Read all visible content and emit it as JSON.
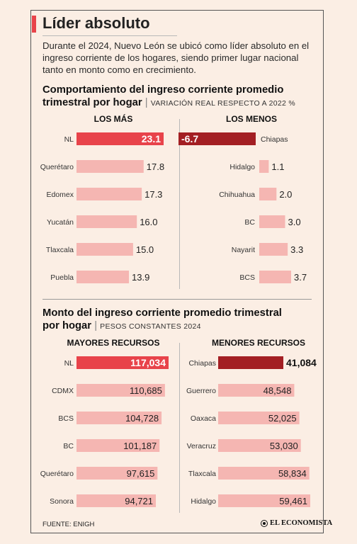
{
  "colors": {
    "accent": "#e8434a",
    "light_bar": "#f5b6b2",
    "dark_bar": "#a31f23",
    "background": "#fbeee4"
  },
  "header": {
    "title": "Líder absoluto",
    "intro": "Durante el 2024, Nuevo León se ubicó como líder absoluto en el ingreso corriente de los hogares, siendo primer lugar nacional tanto en monto como en crecimiento."
  },
  "section1": {
    "title_line1": "Comportamiento del ingreso corriente promedio",
    "title_line2": "trimestral por hogar",
    "subtitle": "VARIACIÓN REAL RESPECTO A 2022 %"
  },
  "section2": {
    "title_line1": "Monto del ingreso corriente promedio trimestral",
    "title_line2": "por hogar",
    "subtitle": "PESOS CONSTANTES 2024"
  },
  "footer": {
    "source": "FUENTE: ENIGH",
    "logo_text": "EL ECONOMISTA"
  },
  "chart_data": [
    {
      "type": "bar",
      "orientation": "horizontal",
      "title": "LOS MÁS",
      "categories": [
        "NL",
        "Querétaro",
        "Edomex",
        "Yucatán",
        "Tlaxcala",
        "Puebla"
      ],
      "values": [
        23.1,
        17.8,
        17.3,
        16.0,
        15.0,
        13.9
      ],
      "labels": [
        "23.1",
        "17.8",
        "17.3",
        "16.0",
        "15.0",
        "13.9"
      ],
      "highlight_index": 0
    },
    {
      "type": "bar",
      "orientation": "horizontal",
      "title": "LOS MENOS",
      "categories": [
        "Chiapas",
        "Hidalgo",
        "Chihuahua",
        "BC",
        "Nayarit",
        "BCS"
      ],
      "values": [
        -6.7,
        1.1,
        2.0,
        3.0,
        3.3,
        3.7
      ],
      "labels": [
        "-6.7",
        "1.1",
        "2.0",
        "3.0",
        "3.3",
        "3.7"
      ],
      "highlight_index": 0
    },
    {
      "type": "bar",
      "orientation": "horizontal",
      "title": "MAYORES RECURSOS",
      "categories": [
        "NL",
        "CDMX",
        "BCS",
        "BC",
        "Querétaro",
        "Sonora"
      ],
      "values": [
        117034,
        110685,
        104728,
        101187,
        97615,
        94721
      ],
      "labels": [
        "117,034",
        "110,685",
        "104,728",
        "101,187",
        "97,615",
        "94,721"
      ],
      "highlight_index": 0
    },
    {
      "type": "bar",
      "orientation": "horizontal",
      "title": "MENORES RECURSOS",
      "categories": [
        "Chiapas",
        "Guerrero",
        "Oaxaca",
        "Veracruz",
        "Tlaxcala",
        "Hidalgo"
      ],
      "values": [
        41084,
        48548,
        52025,
        53030,
        58834,
        59461
      ],
      "labels": [
        "41,084",
        "48,548",
        "52,025",
        "53,030",
        "58,834",
        "59,461"
      ],
      "highlight_index": 0
    }
  ]
}
